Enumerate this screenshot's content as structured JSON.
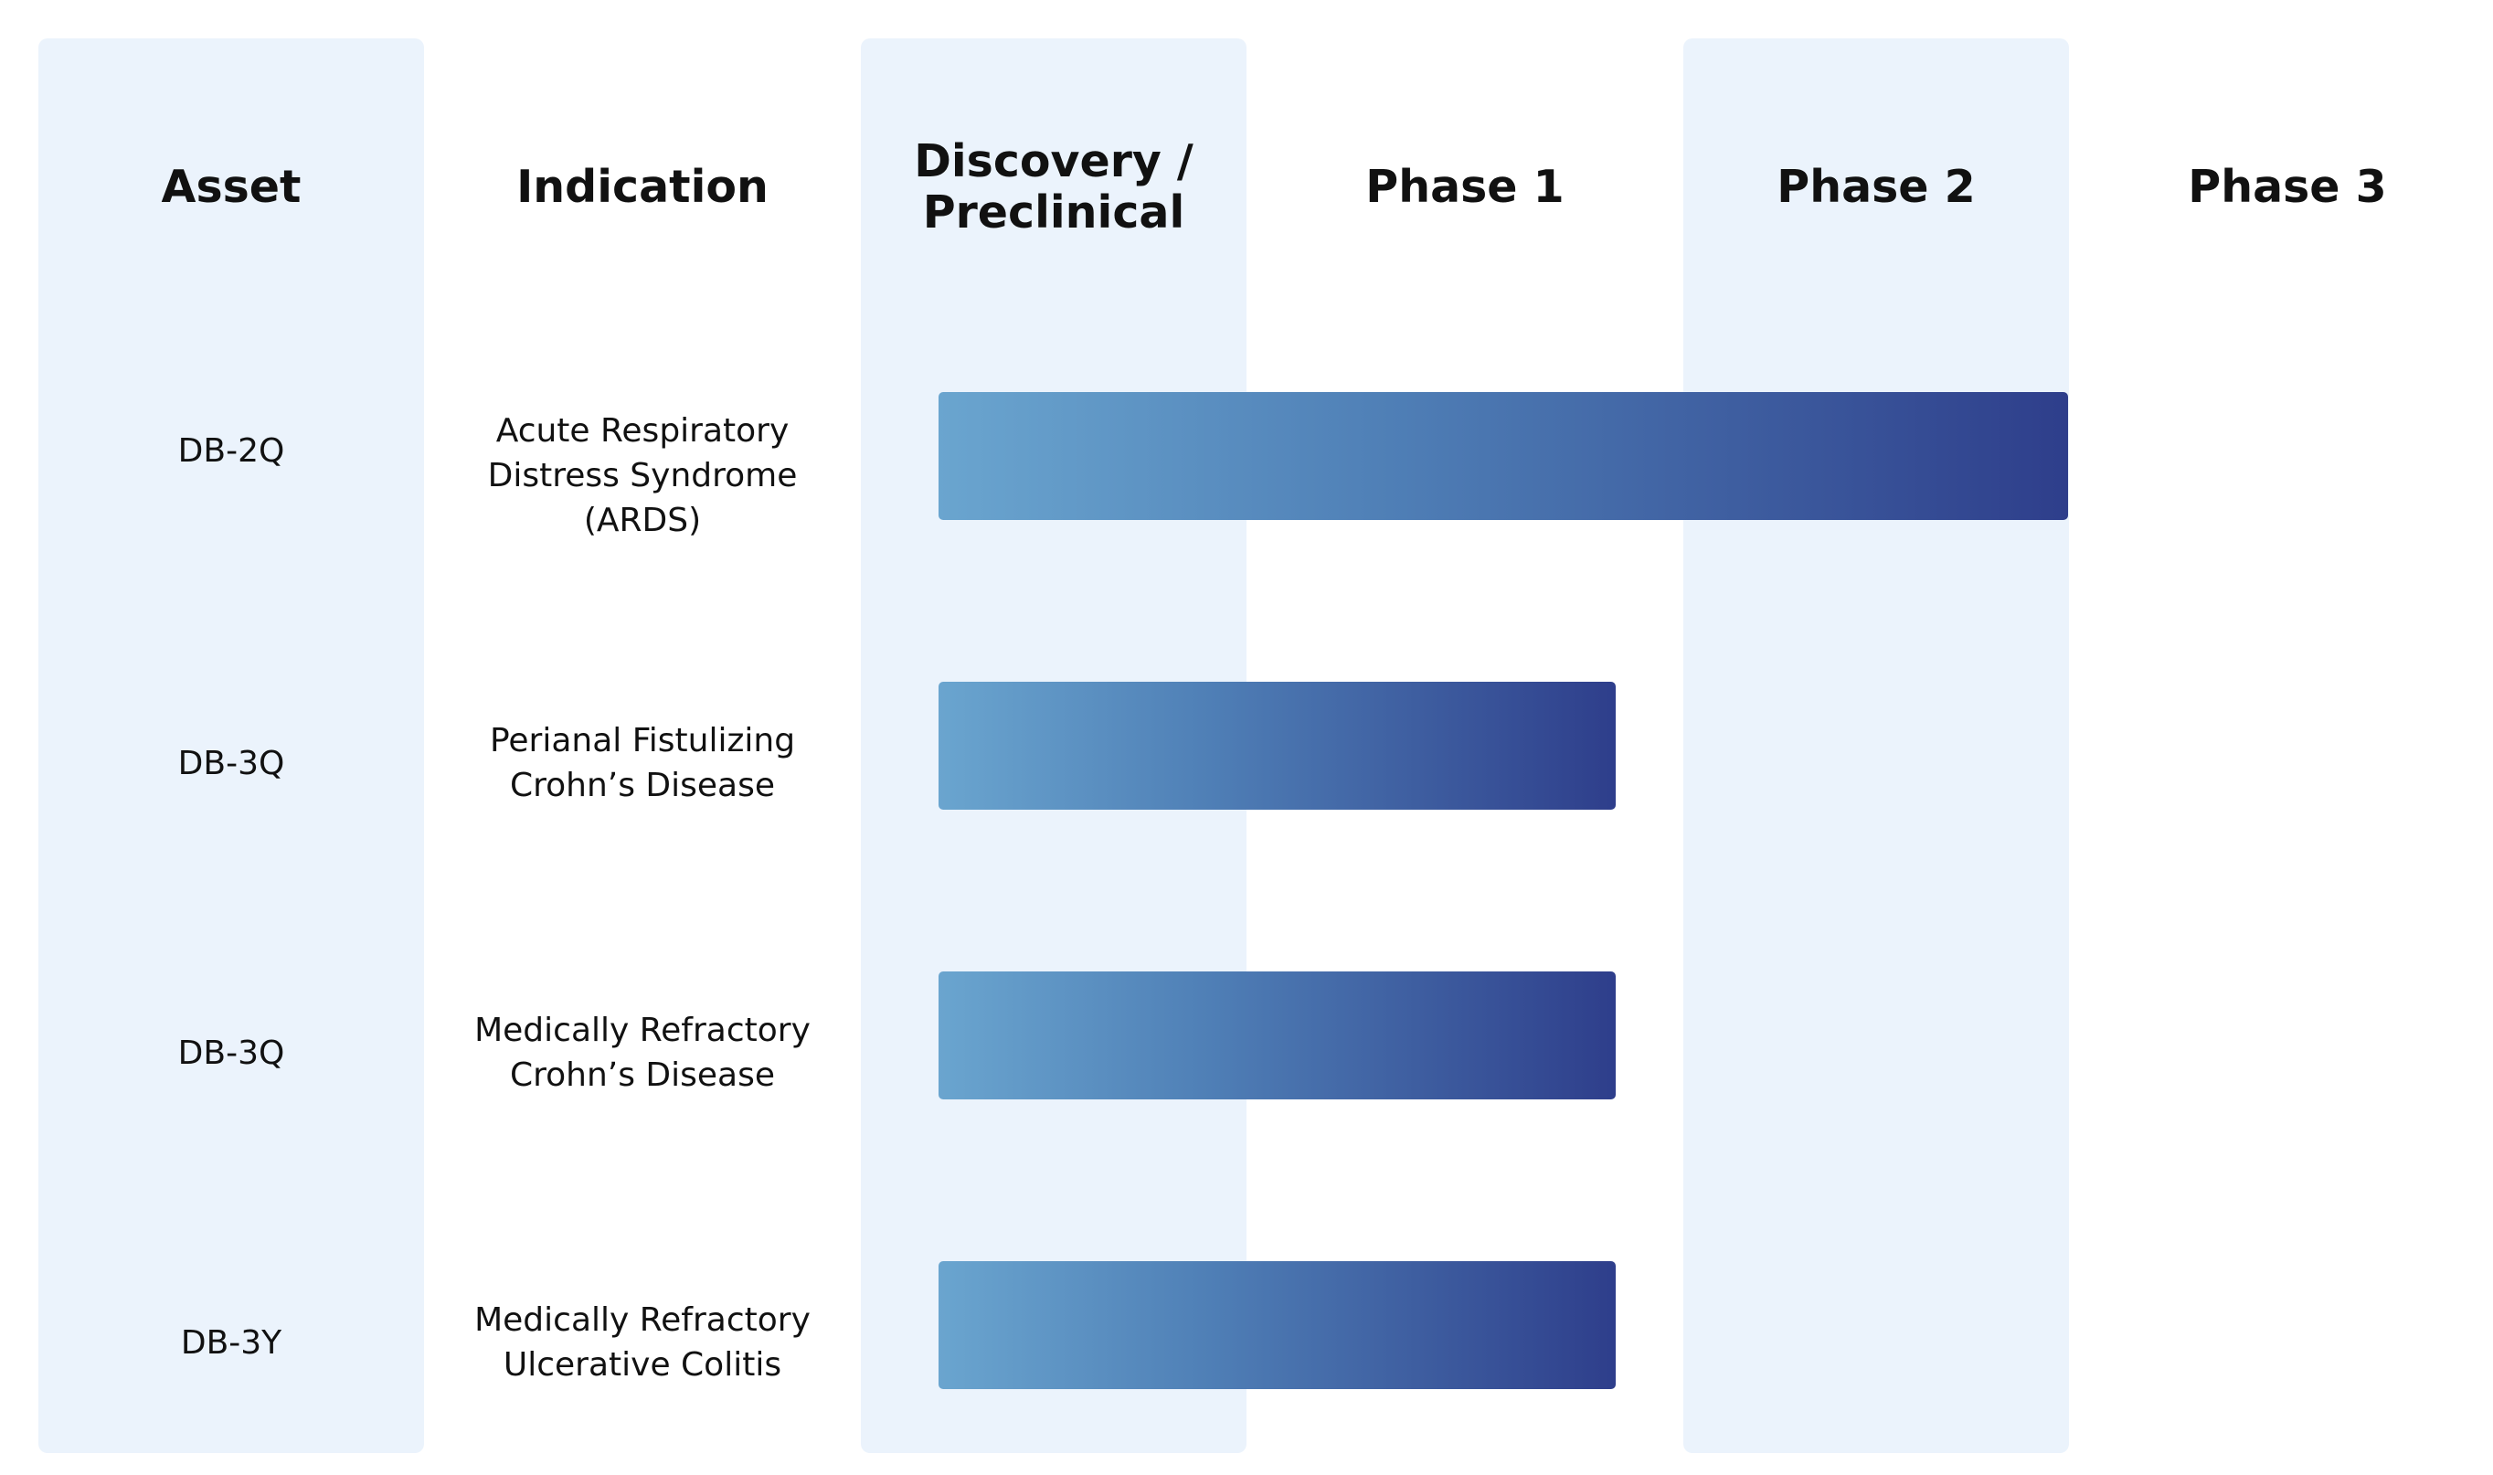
{
  "chart_data": {
    "type": "table",
    "columns": [
      "Asset",
      "Indication",
      "Discovery /\nPreclinical",
      "Phase 1",
      "Phase 2",
      "Phase 3"
    ],
    "stages": [
      "Discovery /\nPreclinical",
      "Phase 1",
      "Phase 2",
      "Phase 3"
    ],
    "rows": [
      {
        "asset": "DB-2Q",
        "indication": "Acute Respiratory\nDistress Syndrome\n(ARDS)",
        "progress_stages": 3.1
      },
      {
        "asset": "DB-3Q",
        "indication": "Perianal Fistulizing\nCrohn’s Disease",
        "progress_stages": 2.0
      },
      {
        "asset": "DB-3Q",
        "indication": "Medically Refractory\nCrohn’s Disease",
        "progress_stages": 2.0
      },
      {
        "asset": "DB-3Y",
        "indication": "Medically Refractory\nUlcerative Colitis",
        "progress_stages": 2.0
      }
    ]
  },
  "colors": {
    "band": "#ebf3fc",
    "bar_start": "#6aa5cf",
    "bar_end": "#2e3e8b"
  }
}
